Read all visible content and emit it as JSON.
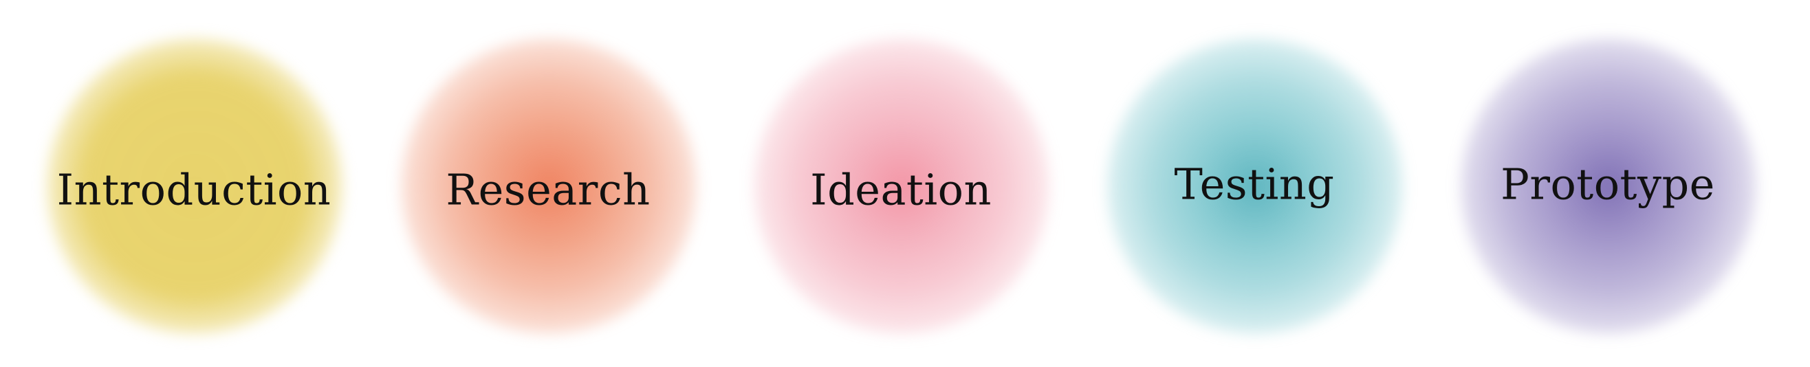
{
  "stages": [
    {
      "label": "Introduction",
      "color": "#E8D36C",
      "inner": "#E8D36C"
    },
    {
      "label": "Research",
      "color": "#EF8A66",
      "inner": "#F08462"
    },
    {
      "label": "Ideation",
      "color": "#F2A0B0",
      "inner": "#F396A6"
    },
    {
      "label": "Testing",
      "color": "#6CC0C8",
      "inner": "#5FB6C0"
    },
    {
      "label": "Prototype",
      "color": "#8C7DBD",
      "inner": "#8172B6"
    }
  ]
}
